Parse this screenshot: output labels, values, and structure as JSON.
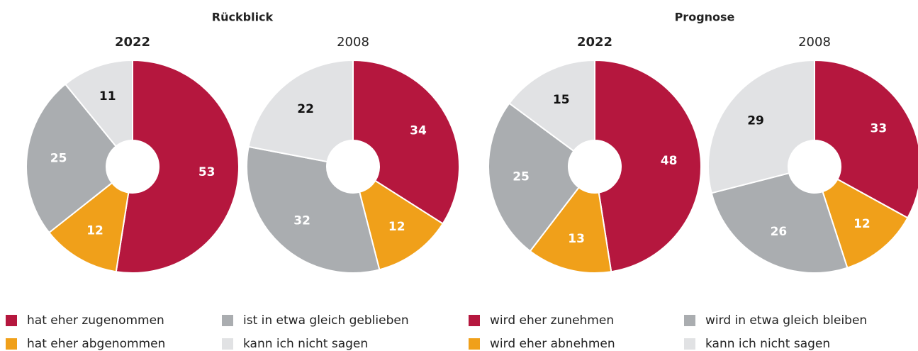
{
  "groups": [
    "Rückblick",
    "Prognose"
  ],
  "chart_data": [
    {
      "type": "pie",
      "title": "2022",
      "categories": [
        "hat eher zugenommen",
        "hat eher abgenommen",
        "ist in etwa gleich geblieben",
        "kann ich nicht sagen"
      ],
      "values": [
        53,
        12,
        25,
        11
      ],
      "colors": [
        "#b5173e",
        "#f0a01a",
        "#aaadb0",
        "#e1e2e4"
      ]
    },
    {
      "type": "pie",
      "title": "2008",
      "categories": [
        "hat eher zugenommen",
        "hat eher abgenommen",
        "ist in etwa gleich geblieben",
        "kann ich nicht sagen"
      ],
      "values": [
        34,
        12,
        32,
        22
      ],
      "colors": [
        "#b5173e",
        "#f0a01a",
        "#aaadb0",
        "#e1e2e4"
      ]
    },
    {
      "type": "pie",
      "title": "2022",
      "categories": [
        "wird eher zunehmen",
        "wird eher abnehmen",
        "wird in etwa gleich bleiben",
        "kann ich nicht sagen"
      ],
      "values": [
        48,
        13,
        25,
        15
      ],
      "colors": [
        "#b5173e",
        "#f0a01a",
        "#aaadb0",
        "#e1e2e4"
      ]
    },
    {
      "type": "pie",
      "title": "2008",
      "categories": [
        "wird eher zunehmen",
        "wird eher abnehmen",
        "wird in etwa gleich bleiben",
        "kann ich nicht sagen"
      ],
      "values": [
        33,
        12,
        26,
        29
      ],
      "colors": [
        "#b5173e",
        "#f0a01a",
        "#aaadb0",
        "#e1e2e4"
      ]
    }
  ]
}
